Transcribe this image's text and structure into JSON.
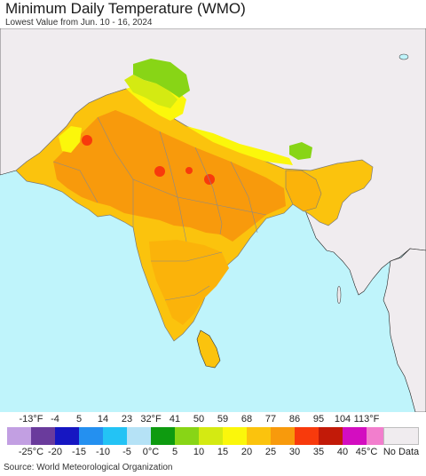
{
  "title": "Minimum Daily Temperature (WMO)",
  "subtitle": "Lowest Value from Jun. 10 - 16, 2024",
  "source": "Source: World Meteorological Organization",
  "legend": {
    "fahrenheit_labels": [
      "-13°F",
      "-4",
      "5",
      "14",
      "23",
      "32°F",
      "41",
      "50",
      "59",
      "68",
      "77",
      "86",
      "95",
      "104",
      "113°F"
    ],
    "celsius_labels": [
      "-25°C",
      "-20",
      "-15",
      "-10",
      "-5",
      "0°C",
      "5",
      "10",
      "15",
      "20",
      "25",
      "30",
      "35",
      "40",
      "45°C"
    ],
    "colors": [
      "#c29fe2",
      "#6a3b9c",
      "#1616c2",
      "#2490f0",
      "#23c3f5",
      "#b5e2f6",
      "#0e9b10",
      "#88d516",
      "#d4ea12",
      "#fbf70b",
      "#fbc30d",
      "#f89a0c",
      "#f83a0c",
      "#c21a08",
      "#d30dc0",
      "#f27ecd"
    ],
    "no_data_label": "No Data",
    "no_data_color": "#f0ecef"
  },
  "map_colors": {
    "ocean": "#bff4fb",
    "land_no_data": "#f0ecef",
    "warm_orange": "#fbb30a",
    "hot_orange": "#f89a0c",
    "yellow_orange": "#fbc30d",
    "cool_yellow": "#fbf70b",
    "lime": "#d4ea12",
    "green": "#88d516",
    "hot_spot": "#f83a0c",
    "border": "#8a8a8a"
  }
}
